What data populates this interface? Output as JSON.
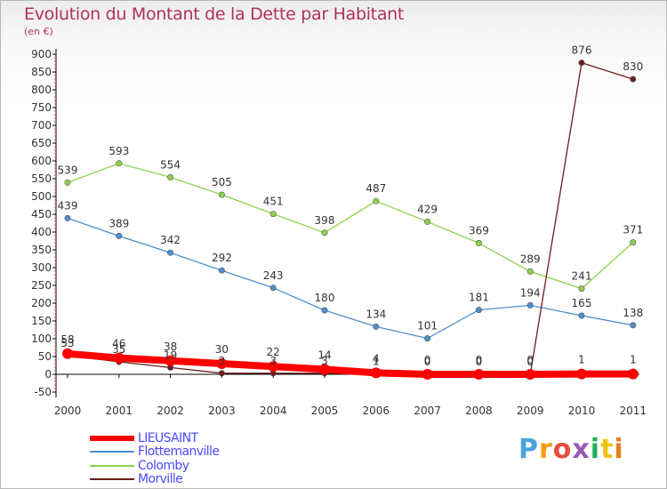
{
  "chart_data": {
    "type": "line",
    "title": "Evolution du Montant de la Dette par Habitant",
    "subtitle": "(en €)",
    "xlabel": "",
    "ylabel": "",
    "categories": [
      "2000",
      "2001",
      "2002",
      "2003",
      "2004",
      "2005",
      "2006",
      "2007",
      "2008",
      "2009",
      "2010",
      "2011"
    ],
    "ylim": [
      -50,
      900
    ],
    "yticks": [
      "-50",
      "0",
      "50",
      "100",
      "150",
      "200",
      "250",
      "300",
      "350",
      "400",
      "450",
      "500",
      "550",
      "600",
      "650",
      "700",
      "750",
      "800",
      "850",
      "900"
    ],
    "grid": false,
    "legend_position": "bottom-left",
    "series": [
      {
        "name": "LIEUSAINT",
        "color": "#ff0000",
        "values": [
          58,
          46,
          38,
          30,
          22,
          14,
          4,
          0,
          0,
          0,
          1,
          1
        ],
        "labels": [
          "58",
          "46",
          "38",
          "30",
          "22",
          "14",
          "4",
          "0",
          "0",
          "0",
          "1",
          "1"
        ]
      },
      {
        "name": "Flottemanville",
        "color": "#4f8fcc",
        "values": [
          439,
          389,
          342,
          292,
          243,
          180,
          134,
          101,
          181,
          194,
          165,
          138
        ],
        "labels": [
          "439",
          "389",
          "342",
          "292",
          "243",
          "180",
          "134",
          "101",
          "181",
          "194",
          "165",
          "138"
        ]
      },
      {
        "name": "Colomby",
        "color": "#8fd14f",
        "values": [
          539,
          593,
          554,
          505,
          451,
          398,
          487,
          429,
          369,
          289,
          241,
          371
        ],
        "labels": [
          "539",
          "593",
          "554",
          "505",
          "451",
          "398",
          "487",
          "429",
          "369",
          "289",
          "241",
          "371"
        ]
      },
      {
        "name": "Morville",
        "color": "#6e1c1c",
        "values": [
          53,
          35,
          19,
          3,
          3,
          3,
          1,
          0,
          0,
          0,
          876,
          830
        ],
        "labels": [
          "53",
          "35",
          "19",
          "3",
          "3",
          "3",
          "1",
          "0",
          "0",
          "0",
          "876",
          "830"
        ]
      }
    ]
  },
  "brand": {
    "letters": [
      "P",
      "r",
      "o",
      "x",
      "i",
      "t",
      "i"
    ],
    "colors": [
      "#4aa3df",
      "#f39c12",
      "#e74c3c",
      "#9b59b6",
      "#27ae60",
      "#f1c40f",
      "#e67e22"
    ]
  }
}
